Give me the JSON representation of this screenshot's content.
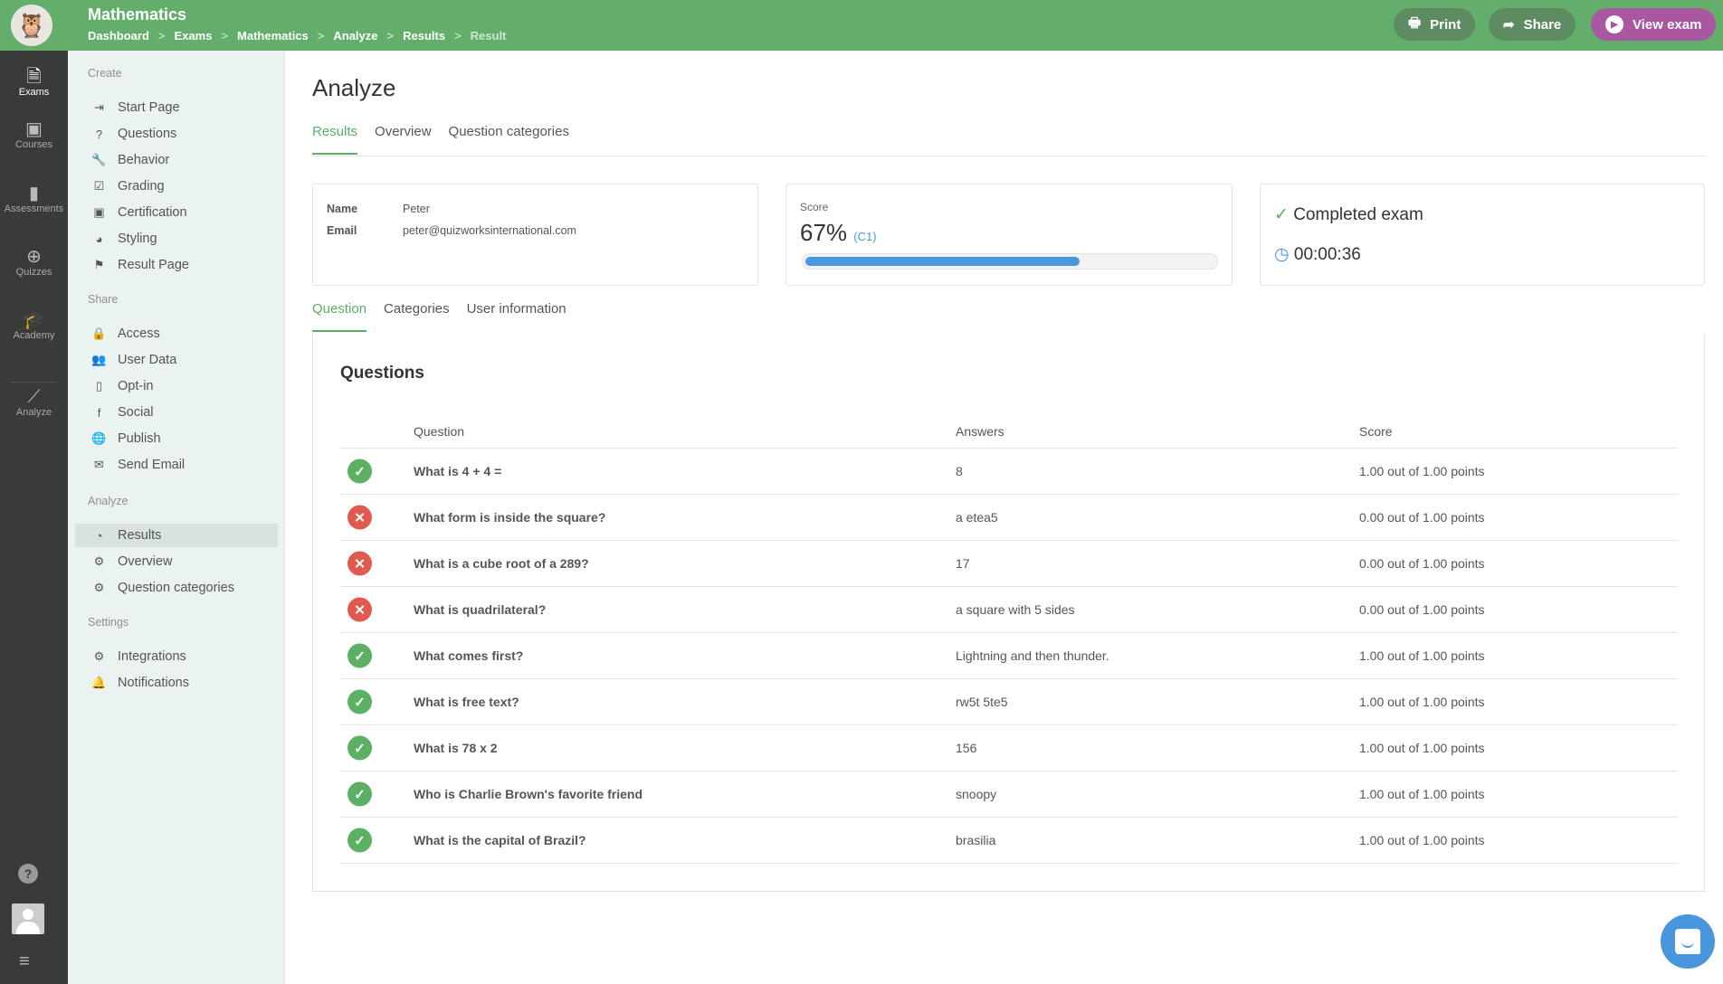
{
  "header": {
    "title": "Mathematics",
    "breadcrumb": [
      "Dashboard",
      "Exams",
      "Mathematics",
      "Analyze",
      "Results",
      "Result"
    ],
    "buttons": {
      "print": "Print",
      "share": "Share",
      "view_exam": "View exam"
    },
    "colors": {
      "header": "#63ae6b",
      "print_share": "#5e8c62",
      "view_exam": "#a957a0"
    }
  },
  "rail": {
    "items": [
      {
        "label": "Exams",
        "icon": "document-icon",
        "active": true
      },
      {
        "label": "Courses",
        "icon": "certificate-icon"
      },
      {
        "label": "Assessments",
        "icon": "bar-chart-icon"
      },
      {
        "label": "Quizzes",
        "icon": "gamepad-icon"
      },
      {
        "label": "Academy",
        "icon": "graduation-cap-icon"
      },
      {
        "label": "Analyze",
        "icon": "line-chart-icon"
      }
    ]
  },
  "sidebar": {
    "sections": [
      {
        "label": "Create",
        "items": [
          {
            "label": "Start Page",
            "icon": "enter-icon"
          },
          {
            "label": "Questions",
            "icon": "question-icon"
          },
          {
            "label": "Behavior",
            "icon": "wrench-icon"
          },
          {
            "label": "Grading",
            "icon": "clipboard-check-icon"
          },
          {
            "label": "Certification",
            "icon": "certificate-icon"
          },
          {
            "label": "Styling",
            "icon": "palette-icon"
          },
          {
            "label": "Result Page",
            "icon": "flag-icon"
          }
        ]
      },
      {
        "label": "Share",
        "items": [
          {
            "label": "Access",
            "icon": "lock-icon"
          },
          {
            "label": "User Data",
            "icon": "users-icon"
          },
          {
            "label": "Opt-in",
            "icon": "file-icon"
          },
          {
            "label": "Social",
            "icon": "facebook-icon"
          },
          {
            "label": "Publish",
            "icon": "globe-icon"
          },
          {
            "label": "Send Email",
            "icon": "envelope-icon"
          }
        ]
      },
      {
        "label": "Analyze",
        "items": [
          {
            "label": "Results",
            "icon": "pie-chart-icon",
            "active": true
          },
          {
            "label": "Overview",
            "icon": "gear-icon"
          },
          {
            "label": "Question categories",
            "icon": "gear-icon"
          }
        ]
      },
      {
        "label": "Settings",
        "items": [
          {
            "label": "Integrations",
            "icon": "gear-icon"
          },
          {
            "label": "Notifications",
            "icon": "bell-icon"
          }
        ]
      }
    ]
  },
  "main": {
    "title": "Analyze",
    "tabs": [
      "Results",
      "Overview",
      "Question categories"
    ],
    "active_tab": "Results",
    "user": {
      "name_label": "Name",
      "name": "Peter",
      "email_label": "Email",
      "email": "peter@quizworksinternational.com"
    },
    "score": {
      "label": "Score",
      "value": "67%",
      "grade": "(C1)",
      "progress_percent": 67,
      "bar_color": "#4a97dd"
    },
    "status": {
      "completed": "Completed exam",
      "duration": "00:00:36"
    },
    "subtabs": [
      "Question",
      "Categories",
      "User information"
    ],
    "active_subtab": "Question",
    "questions": {
      "title": "Questions",
      "columns": [
        "Question",
        "Answers",
        "Score"
      ],
      "rows": [
        {
          "correct": true,
          "question": "What is 4 + 4 =",
          "answer": "8",
          "score": "1.00 out of 1.00 points"
        },
        {
          "correct": false,
          "question": "What form is inside the square?",
          "answer": "a etea5",
          "score": "0.00 out of 1.00 points"
        },
        {
          "correct": false,
          "question": "What is a cube root of a 289?",
          "answer": "17",
          "score": "0.00 out of 1.00 points"
        },
        {
          "correct": false,
          "question": "What is quadrilateral?",
          "answer": "a square with 5 sides",
          "score": "0.00 out of 1.00 points"
        },
        {
          "correct": true,
          "question": "What comes first?",
          "answer": "Lightning and then thunder.",
          "score": "1.00 out of 1.00 points"
        },
        {
          "correct": true,
          "question": "What is free text?",
          "answer": "rw5t 5te5",
          "score": "1.00 out of 1.00 points"
        },
        {
          "correct": true,
          "question": "What is 78 x 2",
          "answer": "156",
          "score": "1.00 out of 1.00 points"
        },
        {
          "correct": true,
          "question": "Who is Charlie Brown's favorite friend",
          "answer": "snoopy",
          "score": "1.00 out of 1.00 points"
        },
        {
          "correct": true,
          "question": "What is the capital of Brazil?",
          "answer": "brasilia",
          "score": "1.00 out of 1.00 points"
        }
      ]
    }
  }
}
